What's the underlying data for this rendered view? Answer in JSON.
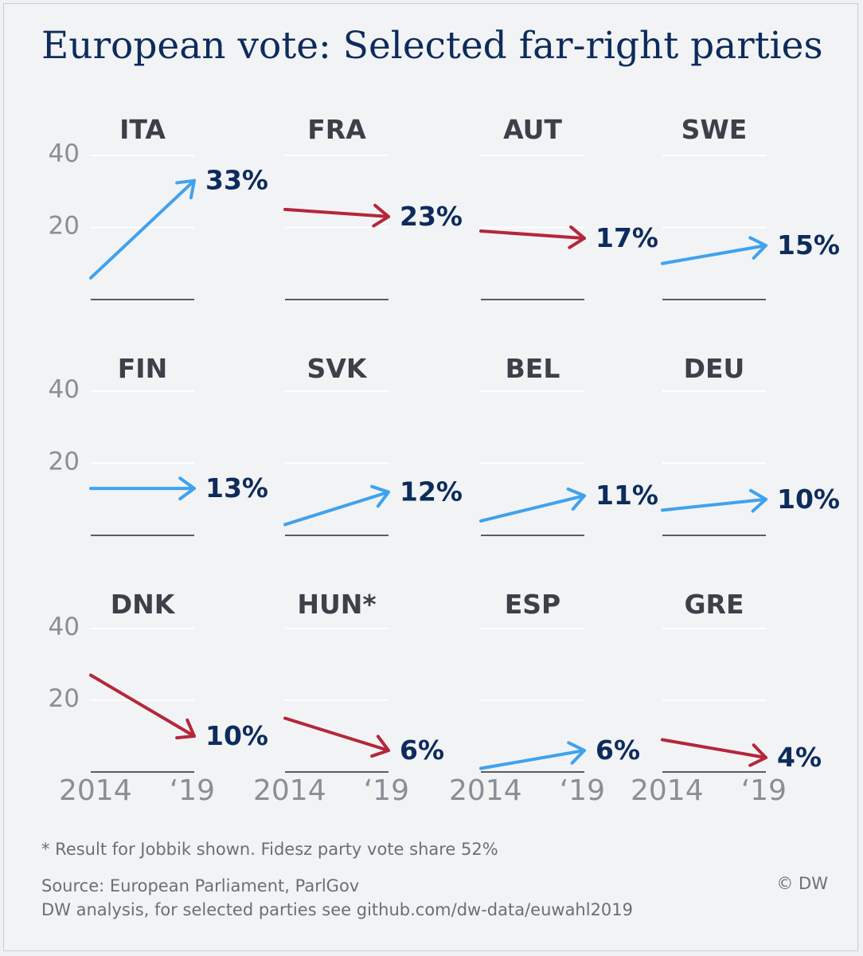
{
  "title": "European vote: Selected far-right parties",
  "footnote": "* Result for Jobbik shown. Fidesz party vote share 52%",
  "source_line1": "Source: European Parliament, ParlGov",
  "source_line2": "DW analysis, for selected parties see github.com/dw-data/euwahl2019",
  "credit": "© DW",
  "colors": {
    "increase": "#3fa2ee",
    "decrease": "#b5263a",
    "value": "#0d2b5c",
    "axis": "#8a8e95",
    "label": "#3d4048"
  },
  "chart_data": {
    "type": "small-multiples-slope",
    "yticks": [
      20,
      40
    ],
    "ylim": [
      0,
      40
    ],
    "xticks": [
      "2014",
      "‘19"
    ],
    "panels": [
      {
        "label": "ITA",
        "start": 6,
        "end": 33,
        "value_label": "33%"
      },
      {
        "label": "FRA",
        "start": 25,
        "end": 23,
        "value_label": "23%"
      },
      {
        "label": "AUT",
        "start": 19,
        "end": 17,
        "value_label": "17%"
      },
      {
        "label": "SWE",
        "start": 10,
        "end": 15,
        "value_label": "15%"
      },
      {
        "label": "FIN",
        "start": 13,
        "end": 13,
        "value_label": "13%"
      },
      {
        "label": "SVK",
        "start": 3,
        "end": 12,
        "value_label": "12%"
      },
      {
        "label": "BEL",
        "start": 4,
        "end": 11,
        "value_label": "11%"
      },
      {
        "label": "DEU",
        "start": 7,
        "end": 10,
        "value_label": "10%"
      },
      {
        "label": "DNK",
        "start": 27,
        "end": 10,
        "value_label": "10%"
      },
      {
        "label": "HUN*",
        "start": 15,
        "end": 6,
        "value_label": "6%"
      },
      {
        "label": "ESP",
        "start": 1,
        "end": 6,
        "value_label": "6%"
      },
      {
        "label": "GRE",
        "start": 9,
        "end": 4,
        "value_label": "4%"
      }
    ]
  }
}
